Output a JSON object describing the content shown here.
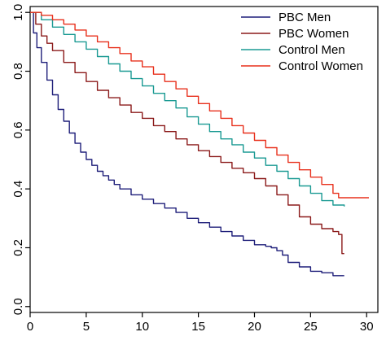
{
  "chart_data": {
    "type": "line",
    "title": "",
    "xlabel": "",
    "ylabel": "",
    "xlim": [
      0,
      31
    ],
    "ylim": [
      -0.02,
      1.02
    ],
    "x_ticks": [
      0,
      5,
      10,
      15,
      20,
      25,
      30
    ],
    "y_ticks": [
      0.0,
      0.2,
      0.4,
      0.6,
      0.8,
      1.0
    ],
    "x_tick_labels": [
      "0",
      "5",
      "10",
      "15",
      "20",
      "25",
      "30"
    ],
    "y_tick_labels": [
      "0.0",
      "0.2",
      "0.4",
      "0.6",
      "0.8",
      "1.0"
    ],
    "grid": false,
    "legend_position": "top-right",
    "step": true,
    "series": [
      {
        "name": "PBC Men",
        "color": "#1f1f7a",
        "x": [
          0,
          0.3,
          0.6,
          1,
          1.5,
          2,
          2.5,
          3,
          3.5,
          4,
          4.5,
          5,
          5.5,
          6,
          6.5,
          7,
          7.5,
          8,
          9,
          10,
          11,
          12,
          13,
          14,
          15,
          16,
          17,
          18,
          19,
          20,
          21,
          21.5,
          22,
          22.5,
          23,
          24,
          25,
          26,
          27,
          28
        ],
        "values": [
          1.0,
          0.93,
          0.88,
          0.83,
          0.77,
          0.72,
          0.67,
          0.63,
          0.59,
          0.555,
          0.525,
          0.5,
          0.48,
          0.46,
          0.445,
          0.43,
          0.415,
          0.4,
          0.38,
          0.365,
          0.35,
          0.335,
          0.32,
          0.3,
          0.285,
          0.27,
          0.255,
          0.24,
          0.225,
          0.21,
          0.205,
          0.2,
          0.19,
          0.175,
          0.15,
          0.135,
          0.12,
          0.115,
          0.105,
          0.105
        ]
      },
      {
        "name": "PBC Women",
        "color": "#8b1a1a",
        "x": [
          0,
          0.5,
          1,
          1.5,
          2,
          3,
          4,
          5,
          6,
          7,
          8,
          9,
          10,
          11,
          12,
          13,
          14,
          15,
          16,
          17,
          18,
          19,
          20,
          21,
          22,
          23,
          24,
          25,
          26,
          27,
          27.5,
          27.8,
          28
        ],
        "values": [
          1.0,
          0.96,
          0.92,
          0.895,
          0.87,
          0.83,
          0.795,
          0.765,
          0.735,
          0.71,
          0.685,
          0.66,
          0.64,
          0.615,
          0.595,
          0.57,
          0.55,
          0.53,
          0.51,
          0.49,
          0.47,
          0.455,
          0.435,
          0.41,
          0.38,
          0.345,
          0.305,
          0.28,
          0.265,
          0.255,
          0.245,
          0.18,
          0.18
        ]
      },
      {
        "name": "Control Men",
        "color": "#1a9a93",
        "x": [
          0,
          1,
          2,
          3,
          4,
          5,
          6,
          7,
          8,
          9,
          10,
          11,
          12,
          13,
          14,
          15,
          16,
          17,
          18,
          19,
          20,
          21,
          22,
          23,
          24,
          25,
          26,
          27,
          28
        ],
        "values": [
          1.0,
          0.975,
          0.95,
          0.925,
          0.9,
          0.875,
          0.85,
          0.825,
          0.8,
          0.775,
          0.75,
          0.725,
          0.7,
          0.675,
          0.645,
          0.62,
          0.595,
          0.57,
          0.55,
          0.525,
          0.505,
          0.48,
          0.46,
          0.435,
          0.41,
          0.385,
          0.36,
          0.345,
          0.34
        ]
      },
      {
        "name": "Control Women",
        "color": "#e8301c",
        "x": [
          0,
          1,
          2,
          3,
          4,
          5,
          6,
          7,
          8,
          9,
          10,
          11,
          12,
          13,
          14,
          15,
          16,
          17,
          18,
          19,
          20,
          21,
          22,
          23,
          24,
          25,
          26,
          27,
          27.5,
          28,
          29,
          30,
          30.2
        ],
        "values": [
          1.0,
          0.99,
          0.975,
          0.96,
          0.94,
          0.92,
          0.9,
          0.88,
          0.86,
          0.835,
          0.815,
          0.79,
          0.765,
          0.74,
          0.715,
          0.69,
          0.665,
          0.64,
          0.615,
          0.59,
          0.565,
          0.54,
          0.515,
          0.49,
          0.465,
          0.44,
          0.415,
          0.385,
          0.37,
          0.37,
          0.37,
          0.37,
          0.37
        ]
      }
    ]
  }
}
